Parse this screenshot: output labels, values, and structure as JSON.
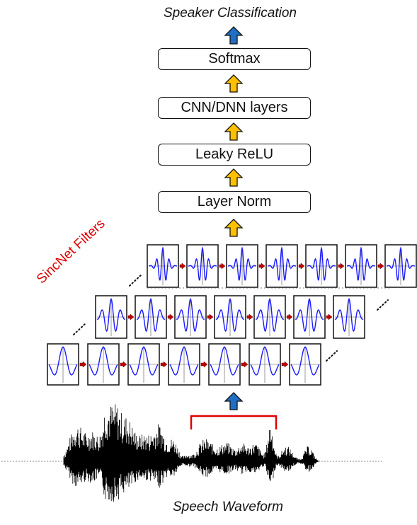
{
  "title": "Speaker Classification",
  "bottom_label": "Speech Waveform",
  "side_label": "SincNet Filters",
  "layers": [
    {
      "label": "Softmax"
    },
    {
      "label": "CNN/DNN layers"
    },
    {
      "label": "Leaky ReLU"
    },
    {
      "label": "Layer Norm"
    }
  ],
  "colors": {
    "arrow_up_blue": "#1f6fc4",
    "arrow_up_yellow": "#ffc000",
    "filter_wave": "#1a1aff",
    "filter_arrow": "#c00000",
    "bracket": "#e00000",
    "waveform": "#000000"
  },
  "filter_rows": 3,
  "filters_per_row": 7
}
